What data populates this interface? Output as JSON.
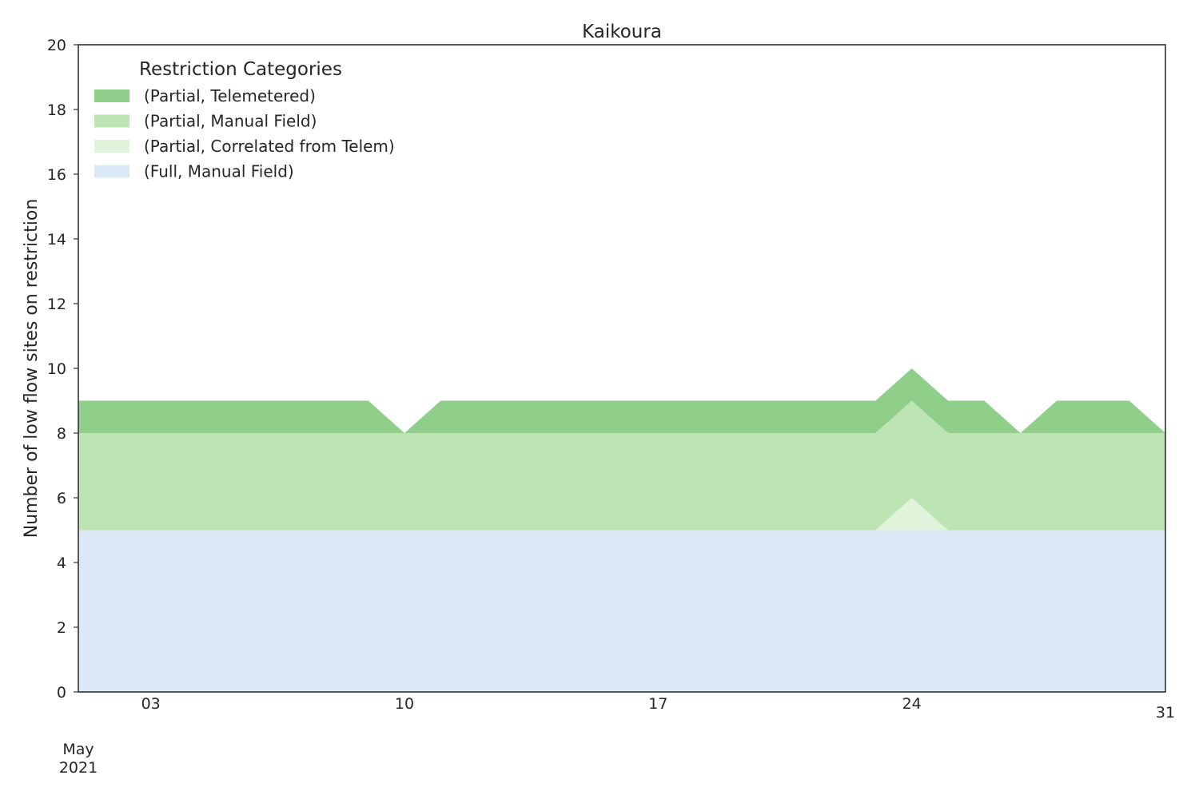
{
  "chart_data": {
    "type": "area",
    "stacked": true,
    "title": "Kaikoura",
    "xlabel": "",
    "ylabel": "Number of low flow sites on restriction",
    "x": [
      "2021-05-01",
      "2021-05-02",
      "2021-05-03",
      "2021-05-04",
      "2021-05-05",
      "2021-05-06",
      "2021-05-07",
      "2021-05-08",
      "2021-05-09",
      "2021-05-10",
      "2021-05-11",
      "2021-05-12",
      "2021-05-13",
      "2021-05-14",
      "2021-05-15",
      "2021-05-16",
      "2021-05-17",
      "2021-05-18",
      "2021-05-19",
      "2021-05-20",
      "2021-05-21",
      "2021-05-22",
      "2021-05-23",
      "2021-05-24",
      "2021-05-25",
      "2021-05-26",
      "2021-05-27",
      "2021-05-28",
      "2021-05-29",
      "2021-05-30",
      "2021-05-31"
    ],
    "xlim": [
      "2021-05-01",
      "2021-05-31"
    ],
    "ylim": [
      0,
      20
    ],
    "yticks": [
      0,
      2,
      4,
      6,
      8,
      10,
      12,
      14,
      16,
      18,
      20
    ],
    "xticks": [
      {
        "date": "2021-05-01",
        "label": "May",
        "sublabel": "2021"
      },
      {
        "date": "2021-05-03",
        "label": "03"
      },
      {
        "date": "2021-05-10",
        "label": "10"
      },
      {
        "date": "2021-05-17",
        "label": "17"
      },
      {
        "date": "2021-05-24",
        "label": "24"
      },
      {
        "date": "2021-05-31",
        "label": "31"
      }
    ],
    "grid": false,
    "legend": {
      "title": "Restriction Categories",
      "placement": "top-left"
    },
    "series": [
      {
        "name": "(Full, Manual Field)",
        "color": "#dbe8f5",
        "values": [
          5,
          5,
          5,
          5,
          5,
          5,
          5,
          5,
          5,
          5,
          5,
          5,
          5,
          5,
          5,
          5,
          5,
          5,
          5,
          5,
          5,
          5,
          5,
          5,
          5,
          5,
          5,
          5,
          5,
          5,
          5
        ]
      },
      {
        "name": "(Partial, Correlated from Telem)",
        "color": "#e0f3db",
        "values": [
          0,
          0,
          0,
          0,
          0,
          0,
          0,
          0,
          0,
          0,
          0,
          0,
          0,
          0,
          0,
          0,
          0,
          0,
          0,
          0,
          0,
          0,
          0,
          1,
          0,
          0,
          0,
          0,
          0,
          0,
          0
        ]
      },
      {
        "name": "(Partial, Manual Field)",
        "color": "#bde4b3",
        "values": [
          3,
          3,
          3,
          3,
          3,
          3,
          3,
          3,
          3,
          3,
          3,
          3,
          3,
          3,
          3,
          3,
          3,
          3,
          3,
          3,
          3,
          3,
          3,
          3,
          3,
          3,
          3,
          3,
          3,
          3,
          3
        ]
      },
      {
        "name": "(Partial, Telemetered)",
        "color": "#8fcf8a",
        "values": [
          1,
          1,
          1,
          1,
          1,
          1,
          1,
          1,
          1,
          0,
          1,
          1,
          1,
          1,
          1,
          1,
          1,
          1,
          1,
          1,
          1,
          1,
          1,
          1,
          1,
          1,
          0,
          1,
          1,
          1,
          0
        ]
      }
    ]
  }
}
